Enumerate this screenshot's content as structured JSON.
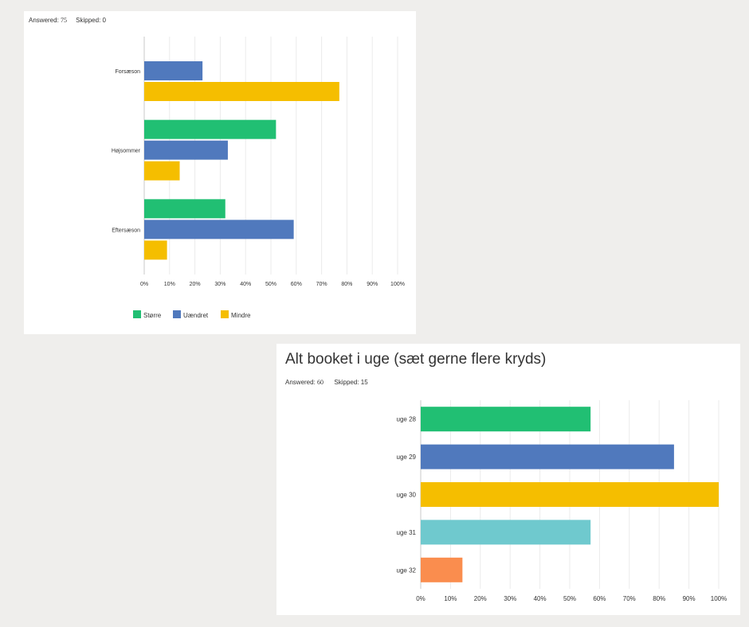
{
  "chart_data": [
    {
      "type": "bar",
      "orientation": "horizontal",
      "title": "",
      "answered_label": "Answered:",
      "answered_value": "75",
      "skipped_label": "Skipped:",
      "skipped_value": "0",
      "categories": [
        "Forsæson",
        "Højsommer",
        "Eftersæson"
      ],
      "series": [
        {
          "name": "Større",
          "color": "#21bf73",
          "values": [
            null,
            52,
            32
          ]
        },
        {
          "name": "Uændret",
          "color": "#5079bd",
          "values": [
            23,
            33,
            59
          ]
        },
        {
          "name": "Mindre",
          "color": "#f5be00",
          "values": [
            77,
            14,
            9
          ]
        }
      ],
      "xlim": [
        0,
        100
      ],
      "xticks": [
        "0%",
        "10%",
        "20%",
        "30%",
        "40%",
        "50%",
        "60%",
        "70%",
        "80%",
        "90%",
        "100%"
      ],
      "legend": "bottom"
    },
    {
      "type": "bar",
      "orientation": "horizontal",
      "title": "Alt booket i uge (sæt gerne flere kryds)",
      "answered_label": "Answered:",
      "answered_value": "60",
      "skipped_label": "Skipped:",
      "skipped_value": "15",
      "categories": [
        "uge 28",
        "uge 29",
        "uge 30",
        "uge 31",
        "uge 32"
      ],
      "values": [
        57,
        85,
        100,
        57,
        14
      ],
      "colors": [
        "#21bf73",
        "#5079bd",
        "#f5be00",
        "#6fc9ce",
        "#fa8d4e"
      ],
      "xlim": [
        0,
        100
      ],
      "xticks": [
        "0%",
        "10%",
        "20%",
        "30%",
        "40%",
        "50%",
        "60%",
        "70%",
        "80%",
        "90%",
        "100%"
      ]
    }
  ]
}
